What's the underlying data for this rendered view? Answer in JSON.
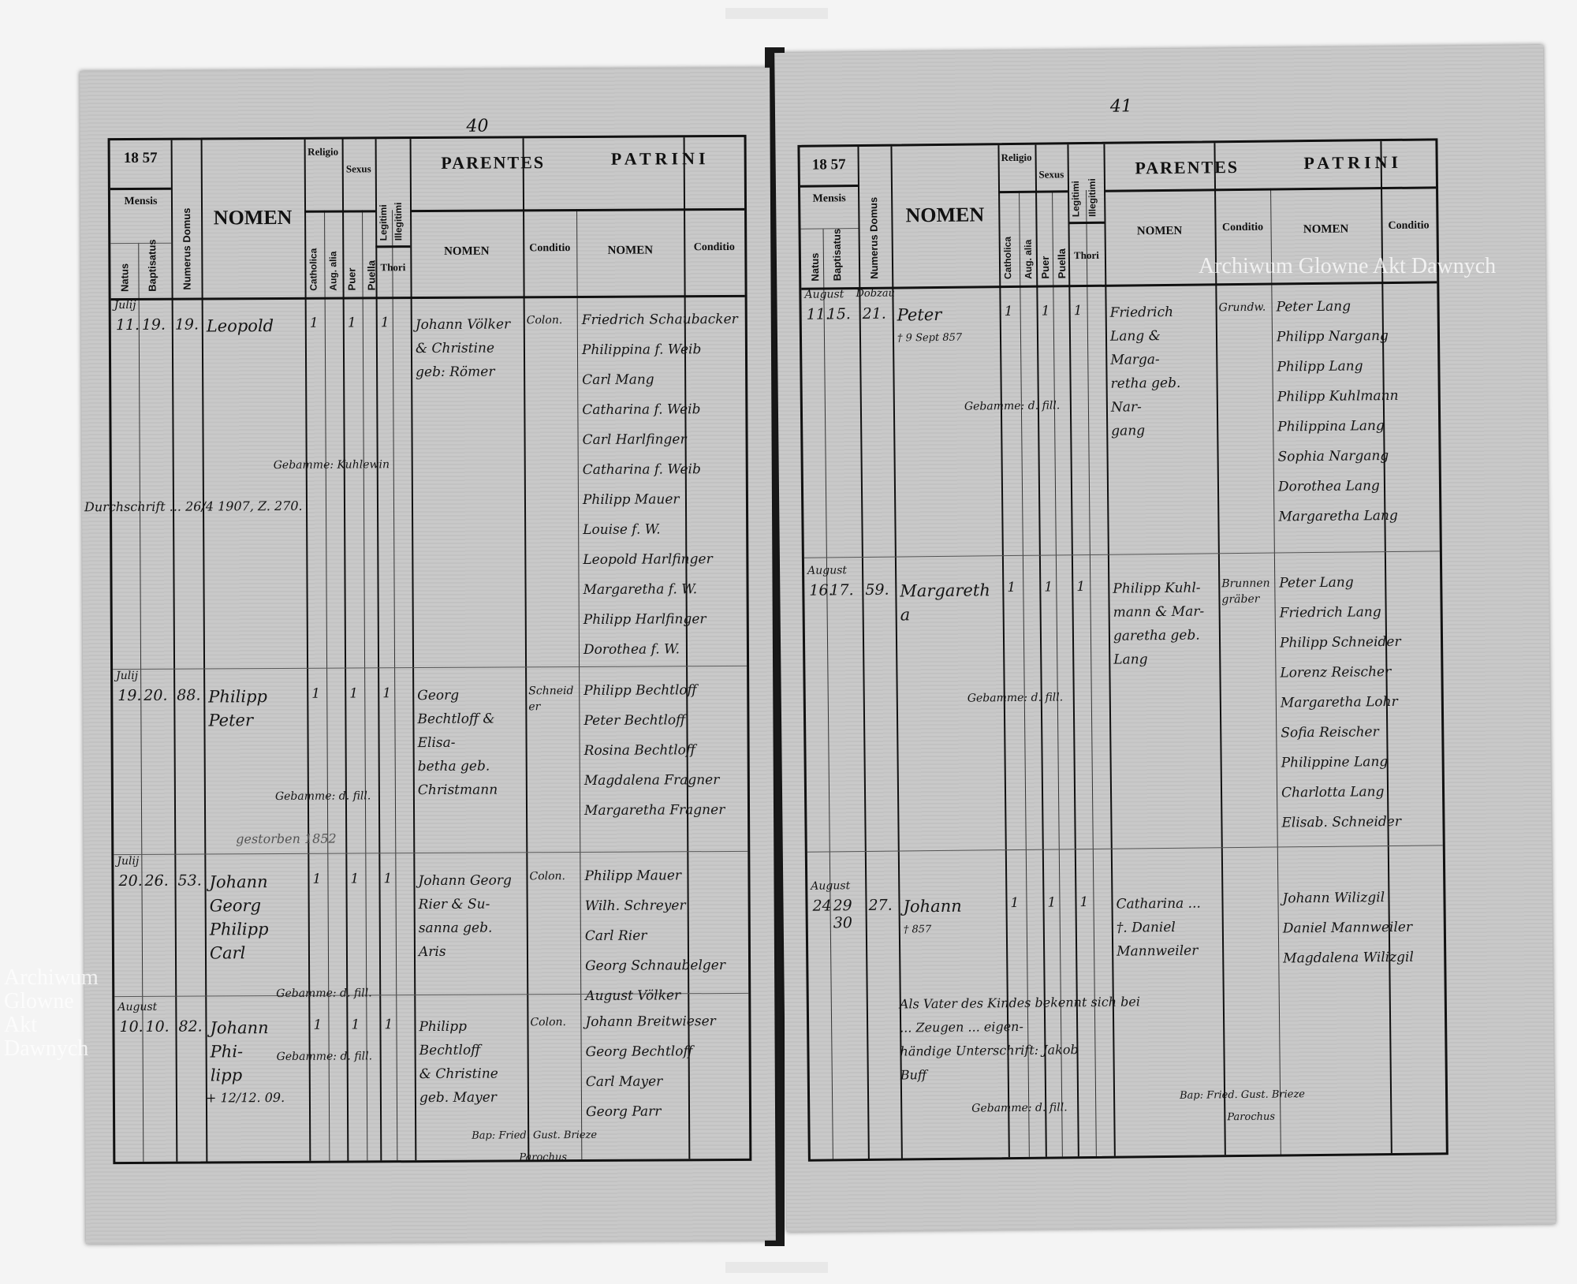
{
  "watermark": "Archiwum Glowne Akt Dawnych",
  "header": {
    "year_prefix": "18",
    "year_suffix": "57",
    "mensis": "Mensis",
    "natus": "Natus",
    "baptisatus": "Baptisatus",
    "numerus_domus": "Numerus Domus",
    "nomen": "NOMEN",
    "religio": "Religio",
    "catholica": "Catholica",
    "augustana": "Aug. alia",
    "sexus": "Sexus",
    "puer": "Puer",
    "puella": "Puella",
    "legitimi": "Legitimi",
    "illegitimi": "Illegitimi",
    "thori": "Thori",
    "parentes": "PARENTES",
    "patrini": "PATRINI",
    "sub_nomen": "NOMEN",
    "conditio": "Conditio"
  },
  "left": {
    "page_number": "40",
    "rows": [
      {
        "month": "Julij",
        "natus": "11.",
        "bapt": "19.",
        "domus": "19.",
        "name": [
          "Leopold"
        ],
        "rel": "1",
        "sex": "1",
        "leg": "1",
        "parents": [
          "Johann Völker",
          "& Christine",
          "geb: Römer"
        ],
        "conditio": "Colon.",
        "patrini": [
          "Friedrich Schaubacker",
          "Philippina f. Weib",
          "Carl Mang",
          "Catharina f. Weib",
          "Carl Harlfinger",
          "Catharina f. Weib",
          "Philipp Mauer",
          "Louise f. W.",
          "Leopold Harlfinger",
          "Margaretha f. W.",
          "Philipp Harlfinger",
          "Dorothea f. W."
        ],
        "notes": [
          "Gebamme: Kuhlewin",
          "Durchschrift ... 26/4 1907, Z. 270."
        ]
      },
      {
        "month": "Julij",
        "natus": "19.",
        "bapt": "20.",
        "domus": "88.",
        "name": [
          "Philipp",
          "Peter"
        ],
        "rel": "1",
        "sex": "1",
        "leg": "1",
        "parents": [
          "Georg Bechtloff & Elisa-",
          "betha geb.",
          "Christmann"
        ],
        "conditio": "Schneider",
        "patrini": [
          "Philipp Bechtloff",
          "Peter Bechtloff",
          "Rosina Bechtloff",
          "Magdalena Fragner",
          "Margaretha Fragner"
        ],
        "notes": [
          "Gebamme: d. fill."
        ]
      },
      {
        "month": "Julij",
        "natus": "20.",
        "bapt": "26.",
        "domus": "53.",
        "name": [
          "Johann",
          "Georg",
          "Philipp",
          "Carl"
        ],
        "rel": "1",
        "sex": "1",
        "leg": "1",
        "parents": [
          "Johann Georg",
          "Rier & Su-",
          "sanna geb.",
          "Aris"
        ],
        "conditio": "Colon.",
        "patrini": [
          "Philipp Mauer",
          "Wilh. Schreyer",
          "Carl Rier",
          "Georg Schnaubelger",
          "August Völker"
        ],
        "notes": [
          "gestorben 1852",
          "Gebamme: d. fill."
        ]
      },
      {
        "month": "August",
        "natus": "10.",
        "bapt": "10.",
        "domus": "82.",
        "name": [
          "Johann Phi-",
          "lipp"
        ],
        "rel": "1",
        "sex": "1",
        "leg": "1",
        "parents": [
          "Philipp Bechtloff",
          "& Christine",
          "geb. Mayer"
        ],
        "conditio": "Colon.",
        "patrini": [
          "Johann Breitwieser",
          "Georg Bechtloff",
          "Carl Mayer",
          "Georg Parr"
        ],
        "notes": [
          "+ 12/12. 09.",
          "Gebamme: d. fill."
        ]
      }
    ],
    "signature": [
      "Bap: Fried. Gust. Brieze",
      "Parochus"
    ]
  },
  "right": {
    "page_number": "41",
    "rows": [
      {
        "month": "August",
        "natus": "11.",
        "bapt": "15.",
        "domus": "21.",
        "place": "Dobzau",
        "name": [
          "Peter",
          "† 9 Sept 857"
        ],
        "rel": "1",
        "sex": "1",
        "leg": "1",
        "parents": [
          "Friedrich",
          "Lang & Marga-",
          "retha geb. Nar-",
          "gang"
        ],
        "conditio": "Grundw.",
        "patrini": [
          "Peter Lang",
          "Philipp Nargang",
          "Philipp Lang",
          "Philipp Kuhlmann",
          "Philippina Lang",
          "Sophia Nargang",
          "Dorothea Lang",
          "Margaretha Lang"
        ],
        "notes": [
          "Gebamme: d. fill."
        ]
      },
      {
        "month": "August",
        "natus": "16.",
        "bapt": "17.",
        "domus": "59.",
        "name": [
          "Margaretha"
        ],
        "rel": "1",
        "sex": "1",
        "leg": "1",
        "parents": [
          "Philipp Kuhl-",
          "mann & Mar-",
          "garetha geb.",
          "Lang"
        ],
        "conditio": "Brunnengräber",
        "patrini": [
          "Peter Lang",
          "Friedrich Lang",
          "Philipp Schneider",
          "Lorenz Reischer",
          "Margaretha Lohr",
          "Sofia Reischer",
          "Philippine Lang",
          "Charlotta Lang",
          "Elisab. Schneider"
        ],
        "notes": [
          "Gebamme: d. fill."
        ]
      },
      {
        "month": "August",
        "natus": "24",
        "bapt": "29 30",
        "domus": "27.",
        "name": [
          "Johann",
          "† 857"
        ],
        "rel": "1",
        "sex": "1",
        "leg": "1",
        "parents": [
          "Catharina ... ",
          "†. Daniel Mannweiler"
        ],
        "conditio": "",
        "patrini": [
          "Johann Wilizgil",
          "Daniel Mannweiler",
          "Magdalena Wilizgil"
        ],
        "notes": [
          "Als Vater des Kindes bekennt sich bei",
          "... Zeugen ... eigen-",
          "händige Unterschrift: Jakob",
          "Buff",
          "Gebamme: d. fill."
        ]
      }
    ],
    "signature": [
      "Bap: Fried. Gust. Brieze",
      "Parochus"
    ]
  }
}
